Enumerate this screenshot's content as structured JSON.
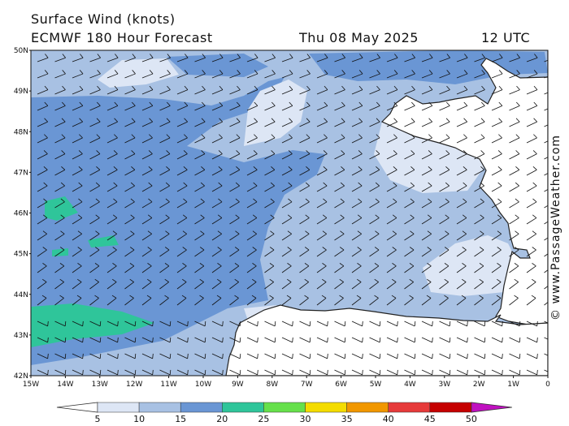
{
  "header": {
    "title": "Surface Wind (knots)",
    "model": "ECMWF 180 Hour Forecast",
    "date": "Thu 08 May 2025",
    "time": "12 UTC"
  },
  "credit": "© www.PassageWeather.com",
  "axes": {
    "lat_labels": [
      "50N",
      "49N",
      "48N",
      "47N",
      "46N",
      "45N",
      "44N",
      "43N",
      "42N"
    ],
    "lon_labels": [
      "15W",
      "14W",
      "13W",
      "12W",
      "11W",
      "10W",
      "9W",
      "8W",
      "7W",
      "6W",
      "5W",
      "4W",
      "3W",
      "2W",
      "1W",
      "0"
    ]
  },
  "colorbar": {
    "ticks": [
      "5",
      "10",
      "15",
      "20",
      "25",
      "30",
      "35",
      "40",
      "45",
      "50"
    ],
    "colors": [
      "#dde6f5",
      "#a8c1e3",
      "#6a96d4",
      "#2fc59a",
      "#66e04b",
      "#f4dc00",
      "#f19700",
      "#e63a3a",
      "#c50000",
      "#c010c0"
    ],
    "below_color": "#ffffff"
  },
  "fills": {
    "land": "#ffffff",
    "range_5_10": "#dde6f5",
    "range_10_15": "#a8c1e3",
    "range_15_20": "#6a96d4",
    "range_20_25": "#2fc59a"
  }
}
